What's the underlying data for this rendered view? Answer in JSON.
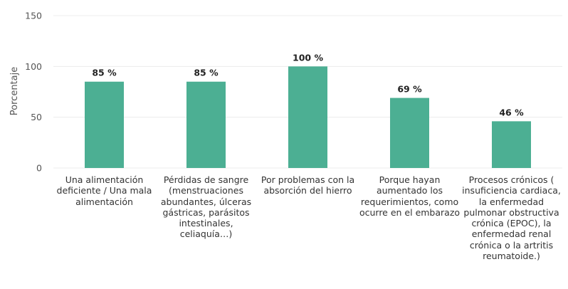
{
  "chart_data": {
    "type": "bar",
    "title": "",
    "xlabel": "",
    "ylabel": "Porcentaje",
    "ylim": [
      0,
      150
    ],
    "yticks": [
      0,
      50,
      100,
      150
    ],
    "grid": true,
    "categories": [
      "Una alimentación deficiente / Una mala alimentación",
      "Pérdidas de sangre (menstruaciones abundantes, úlceras gástricas, parásitos intestinales, celiaquía…)",
      "Por problemas con la absorción del hierro",
      "Porque hayan aumentado los requerimientos, como ocurre en el embarazo",
      "Procesos crónicos ( insuficiencia cardiaca, la enfermedad pulmonar obstructiva crónica (EPOC), la enfermedad renal crónica o la artritis reumatoide.)"
    ],
    "values": [
      85,
      85,
      100,
      69,
      46
    ],
    "data_labels": [
      "85 %",
      "85 %",
      "100 %",
      "69 %",
      "46 %"
    ],
    "bar_color": "#4caf93"
  }
}
